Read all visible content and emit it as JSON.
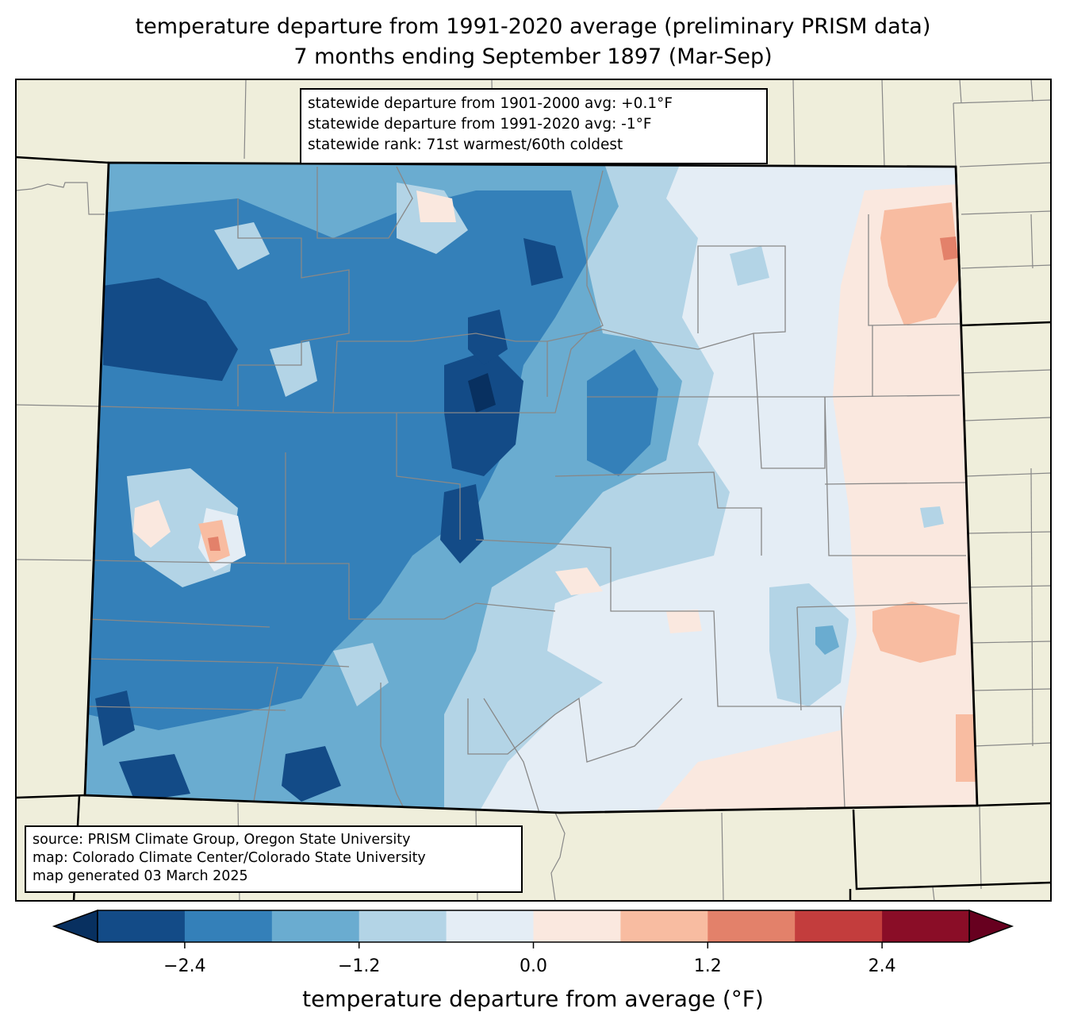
{
  "title": {
    "line1": "temperature departure from 1991-2020 average (preliminary PRISM data)",
    "line2": "7 months ending September 1897 (Mar-Sep)"
  },
  "stats_box": {
    "line1": "statewide departure from 1901-2000 avg: +0.1°F",
    "line2": "statewide departure from 1991-2020 avg: -1°F",
    "line3": "statewide rank: 71st warmest/60th coldest"
  },
  "credits_box": {
    "line1": "source: PRISM Climate Group, Oregon State University",
    "line2": "map: Colorado Climate Center/Colorado State University",
    "line3": "map generated 03 March 2025"
  },
  "colorbar": {
    "label": "temperature departure from average (°F)",
    "ticks": [
      "−2.4",
      "−1.2",
      "0.0",
      "1.2",
      "2.4"
    ],
    "tick_values": [
      -2.4,
      -1.2,
      0.0,
      1.2,
      2.4
    ],
    "levels": [
      -3.0,
      -2.4,
      -1.8,
      -1.2,
      -0.6,
      0.0,
      0.6,
      1.2,
      1.8,
      2.4,
      3.0
    ],
    "colors": [
      "#134b87",
      "#3480b9",
      "#6aacd0",
      "#b3d4e6",
      "#e4edf5",
      "#fae8df",
      "#f8bca1",
      "#e3816a",
      "#c33d3d",
      "#8a0d27"
    ],
    "under_color": "#083060",
    "over_color": "#67001f"
  },
  "colors": {
    "land": "#efeedb",
    "county_line": "#888888",
    "state_line": "#000000"
  }
}
